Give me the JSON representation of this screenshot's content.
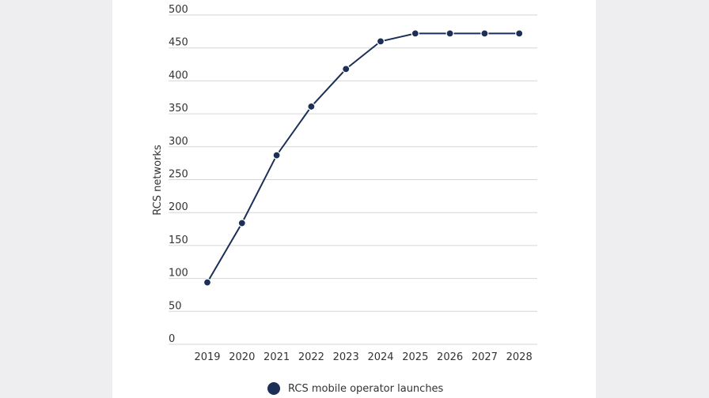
{
  "chart_data": {
    "type": "line",
    "x": [
      "2019",
      "2020",
      "2021",
      "2022",
      "2023",
      "2024",
      "2025",
      "2026",
      "2027",
      "2028"
    ],
    "series": [
      {
        "name": "RCS mobile operator launches",
        "values": [
          94,
          184,
          287,
          361,
          418,
          460,
          472,
          472,
          472,
          472
        ]
      }
    ],
    "ylabel": "RCS networks",
    "xlabel": "",
    "ylim": [
      0,
      500
    ],
    "yticks": [
      0,
      50,
      100,
      150,
      200,
      250,
      300,
      350,
      400,
      450,
      500
    ],
    "grid": true,
    "legend_position": "bottom",
    "colors": {
      "series": "#1b2f57",
      "grid": "#d6d6d6",
      "text": "#333333",
      "marker_stroke": "#ffffff"
    }
  }
}
